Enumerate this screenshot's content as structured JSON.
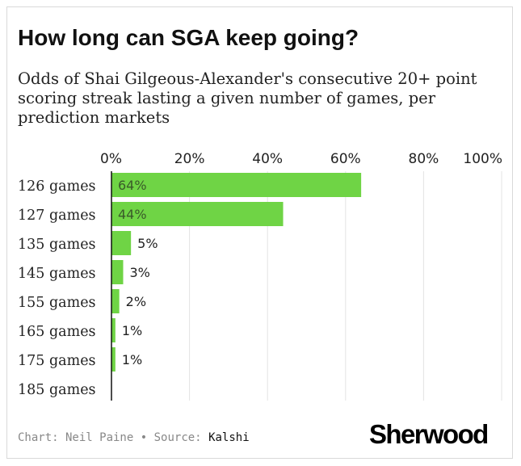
{
  "chart_data": {
    "type": "bar",
    "orientation": "horizontal",
    "title": "How long can SGA keep going?",
    "subtitle": "Odds of Shai Gilgeous-Alexander's consecutive 20+ point scoring streak lasting a given number of games, per prediction markets",
    "categories": [
      "126 games",
      "127 games",
      "135 games",
      "145 games",
      "155 games",
      "165 games",
      "175 games",
      "185 games"
    ],
    "values": [
      64,
      44,
      5,
      3,
      2,
      1,
      1,
      0
    ],
    "data_labels": [
      "64%",
      "44%",
      "5%",
      "3%",
      "2%",
      "1%",
      "1%",
      ""
    ],
    "x_ticks": [
      0,
      20,
      40,
      60,
      80,
      100
    ],
    "x_tick_labels": [
      "0%",
      "20%",
      "40%",
      "60%",
      "80%",
      "100%"
    ],
    "xlim": [
      0,
      100
    ],
    "xlabel": "",
    "ylabel": "",
    "grid": true,
    "axis_position": "top",
    "bar_color": "#6fd445"
  },
  "footer": {
    "credit_prefix": "Chart: Neil Paine",
    "separator": "•",
    "source_label": "Source:",
    "source_name": "Kalshi",
    "brand": "Sherwood"
  }
}
